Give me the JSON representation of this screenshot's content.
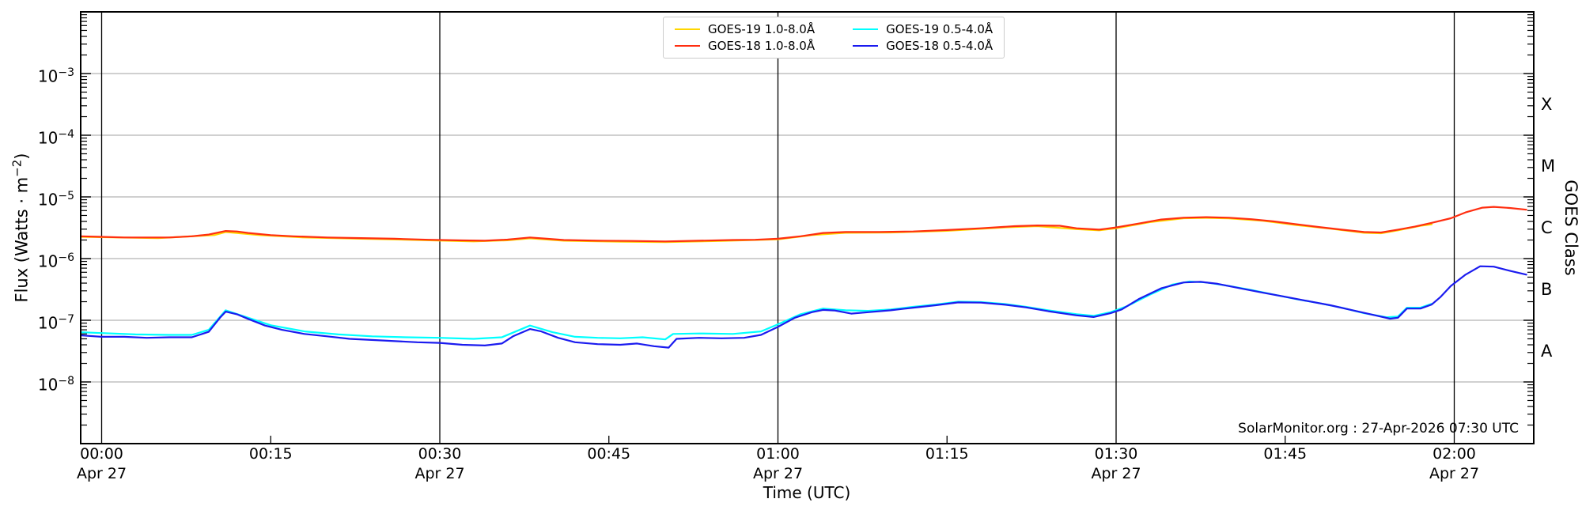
{
  "footer": "SolarMonitor.org : 27-Apr-2026 07:30 UTC",
  "chart_data": {
    "type": "line",
    "xlabel": "Time (UTC)",
    "ylabel": {
      "prefix": "Flux (Watts · m",
      "sup": "−2",
      "suffix": ")"
    },
    "right_axis": {
      "label": "GOES Class",
      "classes": [
        {
          "letter": "X",
          "exp": -3.5
        },
        {
          "letter": "M",
          "exp": -4.5
        },
        {
          "letter": "C",
          "exp": -5.5
        },
        {
          "letter": "B",
          "exp": -6.5
        },
        {
          "letter": "A",
          "exp": -7.5
        }
      ]
    },
    "xlim_minutes": [
      -1.9,
      127.1
    ],
    "ylim": [
      1e-09,
      0.01
    ],
    "grid": true,
    "legend_position": "top-center",
    "x_ticks": [
      {
        "t": 0,
        "label": "00:00",
        "sublabel": "Apr 27",
        "major": true
      },
      {
        "t": 15,
        "label": "00:15",
        "major": false
      },
      {
        "t": 30,
        "label": "00:30",
        "sublabel": "Apr 27",
        "major": true
      },
      {
        "t": 45,
        "label": "00:45",
        "major": false
      },
      {
        "t": 60,
        "label": "01:00",
        "sublabel": "Apr 27",
        "major": true
      },
      {
        "t": 75,
        "label": "01:15",
        "major": false
      },
      {
        "t": 90,
        "label": "01:30",
        "sublabel": "Apr 27",
        "major": true
      },
      {
        "t": 105,
        "label": "01:45",
        "major": false
      },
      {
        "t": 120,
        "label": "02:00",
        "sublabel": "Apr 27",
        "major": true
      }
    ],
    "y_tick_exponents": [
      -3,
      -4,
      -5,
      -6,
      -7,
      -8
    ],
    "series": [
      {
        "name": "GOES-19 1.0-8.0Å",
        "color": "#ffd600",
        "points": [
          [
            -1.9,
            2.25e-06
          ],
          [
            5,
            2.15e-06
          ],
          [
            10,
            2.4e-06
          ],
          [
            11,
            2.7e-06
          ],
          [
            14,
            2.4e-06
          ],
          [
            18,
            2.2e-06
          ],
          [
            23,
            2.1e-06
          ],
          [
            28,
            2e-06
          ],
          [
            33,
            1.9e-06
          ],
          [
            36,
            1.98e-06
          ],
          [
            38,
            2.13e-06
          ],
          [
            41,
            1.95e-06
          ],
          [
            46,
            1.88e-06
          ],
          [
            50,
            1.85e-06
          ],
          [
            55,
            1.93e-06
          ],
          [
            60,
            2.05e-06
          ],
          [
            63,
            2.4e-06
          ],
          [
            66,
            2.62e-06
          ],
          [
            70,
            2.65e-06
          ],
          [
            75,
            2.82e-06
          ],
          [
            80,
            3.2e-06
          ],
          [
            83,
            3.35e-06
          ],
          [
            86.5,
            3e-06
          ],
          [
            88.5,
            2.87e-06
          ],
          [
            90,
            3.1e-06
          ],
          [
            93,
            3.9e-06
          ],
          [
            96,
            4.5e-06
          ],
          [
            98,
            4.58e-06
          ],
          [
            100,
            4.48e-06
          ],
          [
            103,
            4.1e-06
          ],
          [
            106,
            3.5e-06
          ],
          [
            109,
            3.05e-06
          ],
          [
            112,
            2.62e-06
          ],
          [
            113.5,
            2.57e-06
          ],
          [
            115,
            2.87e-06
          ],
          [
            117,
            3.4e-06
          ],
          [
            118,
            3.6e-06
          ]
        ]
      },
      {
        "name": "GOES-18 1.0-8.0Å",
        "color": "#ff2e10",
        "points": [
          [
            -1.9,
            2.3e-06
          ],
          [
            0,
            2.25e-06
          ],
          [
            2,
            2.2e-06
          ],
          [
            4,
            2.2e-06
          ],
          [
            6,
            2.2e-06
          ],
          [
            8,
            2.3e-06
          ],
          [
            9.5,
            2.45e-06
          ],
          [
            11,
            2.8e-06
          ],
          [
            12,
            2.75e-06
          ],
          [
            13,
            2.6e-06
          ],
          [
            15,
            2.4e-06
          ],
          [
            17,
            2.3e-06
          ],
          [
            20,
            2.2e-06
          ],
          [
            23,
            2.15e-06
          ],
          [
            26,
            2.1e-06
          ],
          [
            29,
            2.02e-06
          ],
          [
            32,
            1.97e-06
          ],
          [
            34,
            1.95e-06
          ],
          [
            36,
            2.03e-06
          ],
          [
            38,
            2.2e-06
          ],
          [
            39.5,
            2.1e-06
          ],
          [
            41,
            2e-06
          ],
          [
            44,
            1.95e-06
          ],
          [
            47,
            1.93e-06
          ],
          [
            50,
            1.9e-06
          ],
          [
            53,
            1.95e-06
          ],
          [
            56,
            2e-06
          ],
          [
            58,
            2.02e-06
          ],
          [
            60,
            2.1e-06
          ],
          [
            62,
            2.3e-06
          ],
          [
            64,
            2.6e-06
          ],
          [
            66,
            2.7e-06
          ],
          [
            69,
            2.7e-06
          ],
          [
            72,
            2.75e-06
          ],
          [
            75,
            2.9e-06
          ],
          [
            78,
            3.1e-06
          ],
          [
            81,
            3.35e-06
          ],
          [
            83,
            3.45e-06
          ],
          [
            85,
            3.4e-06
          ],
          [
            86.5,
            3.1e-06
          ],
          [
            88.5,
            2.95e-06
          ],
          [
            90,
            3.2e-06
          ],
          [
            92,
            3.7e-06
          ],
          [
            94,
            4.3e-06
          ],
          [
            96,
            4.6e-06
          ],
          [
            98,
            4.7e-06
          ],
          [
            100,
            4.6e-06
          ],
          [
            102,
            4.35e-06
          ],
          [
            104,
            4e-06
          ],
          [
            106,
            3.6e-06
          ],
          [
            108,
            3.25e-06
          ],
          [
            110,
            2.95e-06
          ],
          [
            112,
            2.7e-06
          ],
          [
            113.5,
            2.65e-06
          ],
          [
            115,
            2.95e-06
          ],
          [
            116.5,
            3.3e-06
          ],
          [
            118,
            3.8e-06
          ],
          [
            119.7,
            4.5e-06
          ],
          [
            121,
            5.6e-06
          ],
          [
            122.5,
            6.7e-06
          ],
          [
            123.5,
            6.9e-06
          ],
          [
            125,
            6.6e-06
          ],
          [
            126.4,
            6.2e-06
          ]
        ]
      },
      {
        "name": "GOES-19 0.5-4.0Å",
        "color": "#00ffff",
        "points": [
          [
            -1.9,
            6.4e-08
          ],
          [
            0,
            6.2e-08
          ],
          [
            3,
            5.9e-08
          ],
          [
            6,
            5.8e-08
          ],
          [
            8,
            5.8e-08
          ],
          [
            9.5,
            7e-08
          ],
          [
            11,
            1.45e-07
          ],
          [
            13,
            1.1e-07
          ],
          [
            15,
            8.3e-08
          ],
          [
            18,
            6.6e-08
          ],
          [
            21,
            5.9e-08
          ],
          [
            24,
            5.5e-08
          ],
          [
            27,
            5.3e-08
          ],
          [
            30,
            5.2e-08
          ],
          [
            33,
            5e-08
          ],
          [
            35.5,
            5.3e-08
          ],
          [
            38,
            8.2e-08
          ],
          [
            40,
            6.4e-08
          ],
          [
            42,
            5.4e-08
          ],
          [
            44,
            5.2e-08
          ],
          [
            46,
            5.1e-08
          ],
          [
            48,
            5.3e-08
          ],
          [
            50,
            4.9e-08
          ],
          [
            50.7,
            6e-08
          ],
          [
            53,
            6.1e-08
          ],
          [
            56,
            6e-08
          ],
          [
            58.5,
            6.6e-08
          ],
          [
            60,
            8.6e-08
          ],
          [
            62,
            1.25e-07
          ],
          [
            64,
            1.55e-07
          ],
          [
            66,
            1.45e-07
          ],
          [
            68,
            1.42e-07
          ],
          [
            70,
            1.5e-07
          ],
          [
            72,
            1.65e-07
          ],
          [
            74,
            1.8e-07
          ],
          [
            76,
            2e-07
          ],
          [
            78,
            1.97e-07
          ],
          [
            80,
            1.85e-07
          ],
          [
            82,
            1.65e-07
          ],
          [
            84,
            1.45e-07
          ],
          [
            86.5,
            1.25e-07
          ],
          [
            88,
            1.18e-07
          ],
          [
            89.5,
            1.35e-07
          ],
          [
            91,
            1.7e-07
          ],
          [
            93,
            2.6e-07
          ],
          [
            95,
            3.8e-07
          ],
          [
            96.5,
            4.25e-07
          ],
          [
            98,
            4.1e-07
          ],
          [
            100,
            3.6e-07
          ],
          [
            102,
            3.1e-07
          ],
          [
            104,
            2.6e-07
          ],
          [
            106,
            2.2e-07
          ],
          [
            108,
            1.9e-07
          ],
          [
            110,
            1.6e-07
          ],
          [
            112,
            1.3e-07
          ],
          [
            114,
            1.12e-07
          ],
          [
            115,
            1.15e-07
          ],
          [
            115.8,
            1.6e-07
          ],
          [
            117,
            1.6e-07
          ],
          [
            118,
            1.85e-07
          ]
        ]
      },
      {
        "name": "GOES-18 0.5-4.0Å",
        "color": "#1b1bef",
        "points": [
          [
            -1.9,
            5.7e-08
          ],
          [
            0,
            5.4e-08
          ],
          [
            2,
            5.4e-08
          ],
          [
            4,
            5.2e-08
          ],
          [
            6,
            5.3e-08
          ],
          [
            8,
            5.3e-08
          ],
          [
            9.5,
            6.5e-08
          ],
          [
            10.5,
            1.1e-07
          ],
          [
            11,
            1.38e-07
          ],
          [
            12,
            1.25e-07
          ],
          [
            13,
            1.05e-07
          ],
          [
            14.5,
            8.2e-08
          ],
          [
            16,
            7e-08
          ],
          [
            18,
            6e-08
          ],
          [
            20,
            5.5e-08
          ],
          [
            22,
            5e-08
          ],
          [
            25,
            4.7e-08
          ],
          [
            28,
            4.4e-08
          ],
          [
            30,
            4.3e-08
          ],
          [
            32,
            4e-08
          ],
          [
            34,
            3.9e-08
          ],
          [
            35.5,
            4.2e-08
          ],
          [
            36.5,
            5.5e-08
          ],
          [
            38,
            7.2e-08
          ],
          [
            39,
            6.6e-08
          ],
          [
            40.5,
            5.2e-08
          ],
          [
            42,
            4.4e-08
          ],
          [
            44,
            4.1e-08
          ],
          [
            46,
            4e-08
          ],
          [
            47.5,
            4.2e-08
          ],
          [
            49,
            3.8e-08
          ],
          [
            50.3,
            3.6e-08
          ],
          [
            51,
            5e-08
          ],
          [
            53,
            5.2e-08
          ],
          [
            55,
            5.1e-08
          ],
          [
            57,
            5.2e-08
          ],
          [
            58.5,
            5.8e-08
          ],
          [
            60,
            7.8e-08
          ],
          [
            61.5,
            1.1e-07
          ],
          [
            63,
            1.35e-07
          ],
          [
            64,
            1.47e-07
          ],
          [
            65,
            1.44e-07
          ],
          [
            66.5,
            1.28e-07
          ],
          [
            68,
            1.35e-07
          ],
          [
            70,
            1.45e-07
          ],
          [
            72,
            1.6e-07
          ],
          [
            74,
            1.75e-07
          ],
          [
            76,
            1.95e-07
          ],
          [
            78,
            1.93e-07
          ],
          [
            80,
            1.8e-07
          ],
          [
            82,
            1.62e-07
          ],
          [
            84,
            1.4e-07
          ],
          [
            86.5,
            1.2e-07
          ],
          [
            88,
            1.13e-07
          ],
          [
            89.5,
            1.3e-07
          ],
          [
            90.5,
            1.5e-07
          ],
          [
            92,
            2.2e-07
          ],
          [
            94,
            3.3e-07
          ],
          [
            96,
            4.1e-07
          ],
          [
            97.5,
            4.2e-07
          ],
          [
            99,
            3.9e-07
          ],
          [
            101,
            3.3e-07
          ],
          [
            103,
            2.8e-07
          ],
          [
            105,
            2.4e-07
          ],
          [
            107,
            2.05e-07
          ],
          [
            109,
            1.75e-07
          ],
          [
            111,
            1.45e-07
          ],
          [
            113,
            1.2e-07
          ],
          [
            114.3,
            1.06e-07
          ],
          [
            115,
            1.1e-07
          ],
          [
            115.8,
            1.55e-07
          ],
          [
            117,
            1.55e-07
          ],
          [
            118,
            1.8e-07
          ],
          [
            118.8,
            2.4e-07
          ],
          [
            119.7,
            3.6e-07
          ],
          [
            121,
            5.5e-07
          ],
          [
            122.3,
            7.5e-07
          ],
          [
            123.5,
            7.4e-07
          ],
          [
            125,
            6.3e-07
          ],
          [
            126.4,
            5.5e-07
          ]
        ]
      }
    ],
    "colors": {
      "frame": "#000000",
      "major_vertical_line": "#000000",
      "decade_gridline": "#b3b3b3"
    }
  }
}
